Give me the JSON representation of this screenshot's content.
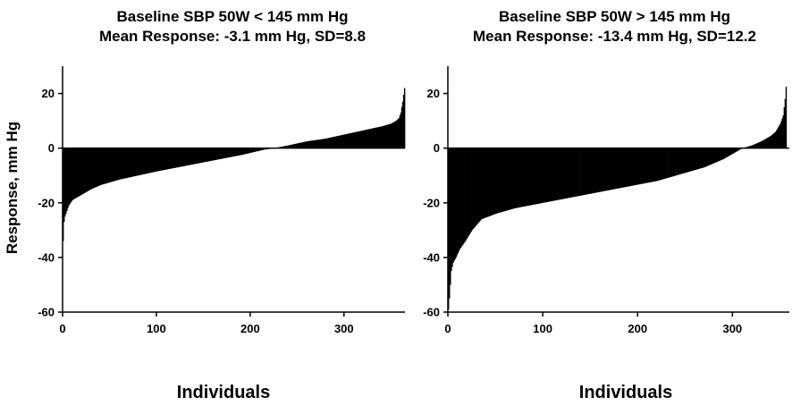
{
  "chart_data": [
    {
      "type": "bar",
      "title_lines": [
        "Baseline SBP 50W < 145 mm Hg",
        "Mean Response: -3.1 mm Hg, SD=8.8"
      ],
      "xlabel": "Individuals",
      "ylabel": "Response, mm Hg",
      "xlim": [
        0,
        365
      ],
      "ylim": [
        -60,
        30
      ],
      "xticks": [
        0,
        100,
        200,
        300
      ],
      "yticks": [
        20,
        0,
        -20,
        -40,
        -60
      ],
      "n": 365,
      "sorted_response_curve": {
        "x": [
          0,
          1,
          2,
          4,
          6,
          10,
          15,
          20,
          30,
          40,
          60,
          80,
          100,
          130,
          160,
          190,
          215,
          225,
          240,
          260,
          280,
          300,
          320,
          340,
          350,
          355,
          358,
          360,
          362,
          364
        ],
        "y": [
          -34,
          -27,
          -25,
          -23,
          -21,
          -19,
          -18,
          -17,
          -15,
          -13.5,
          -11.5,
          -10,
          -8.5,
          -6.5,
          -4.5,
          -2.5,
          -0.5,
          0,
          1,
          2.5,
          3.5,
          5,
          6.5,
          8,
          9,
          10,
          11,
          13,
          17,
          22
        ]
      },
      "grid": false
    },
    {
      "type": "bar",
      "title_lines": [
        "Baseline SBP 50W > 145 mm Hg",
        "Mean Response: -13.4 mm Hg, SD=12.2"
      ],
      "xlabel": "Individuals",
      "ylabel": "",
      "xlim": [
        0,
        360
      ],
      "ylim": [
        -60,
        30
      ],
      "xticks": [
        0,
        100,
        200,
        300
      ],
      "yticks": [
        20,
        0,
        -20,
        -40,
        -60
      ],
      "n": 357,
      "sorted_response_curve": {
        "x": [
          0,
          1,
          2,
          3,
          5,
          8,
          12,
          18,
          25,
          35,
          50,
          70,
          100,
          130,
          160,
          190,
          220,
          250,
          270,
          290,
          305,
          310,
          320,
          330,
          340,
          345,
          350,
          353,
          355,
          357
        ],
        "y": [
          -59,
          -55,
          -50,
          -45,
          -42,
          -40,
          -37,
          -34,
          -30,
          -26,
          -24,
          -22,
          -20,
          -18,
          -16,
          -14,
          -12,
          -9,
          -7,
          -4,
          -1,
          0,
          1,
          2.5,
          4.5,
          6,
          9,
          12,
          18,
          27
        ]
      },
      "grid": false
    }
  ]
}
